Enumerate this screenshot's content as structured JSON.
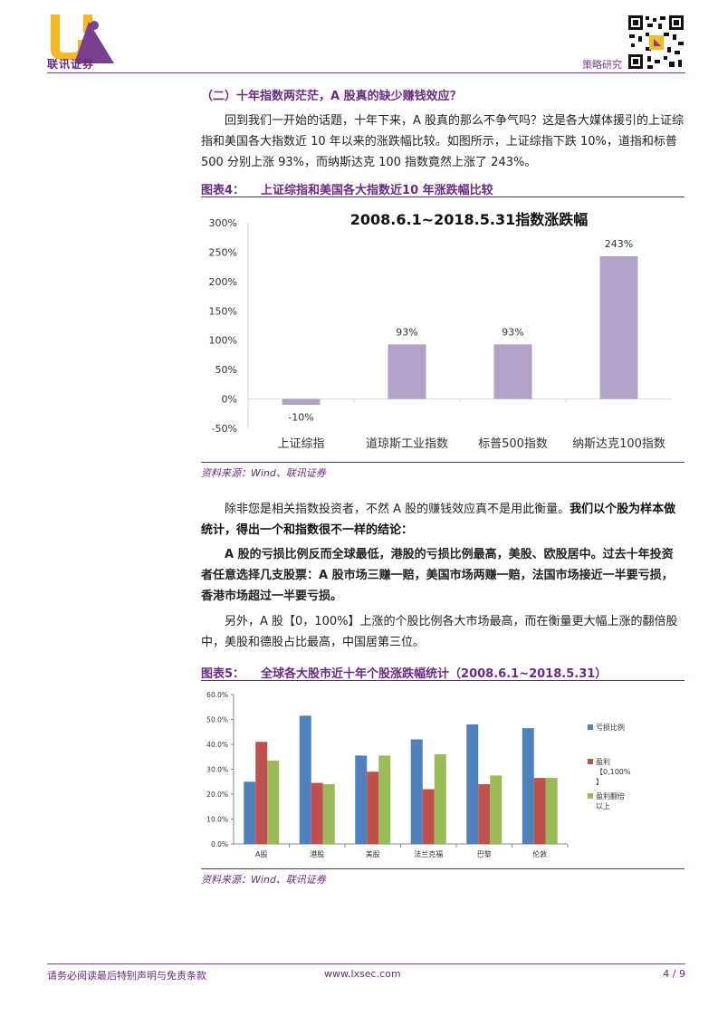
{
  "header": {
    "logo_text": "联讯证券",
    "section": "策略研究"
  },
  "body": {
    "section_title": "（二）十年指数两茫茫，A 股真的缺少赚钱效应？",
    "p1": "回到我们一开始的话题，十年下来，A 股真的那么不争气吗？这是各大媒体援引的上证综指和美国各大指数近 10 年以来的涨跌幅比较。如图所示，上证综指下跌 10%，道指和标普 500 分别上涨 93%，而纳斯达克 100 指数竟然上涨了 243%。",
    "fig4_label": "图表4：",
    "fig4_title": "上证综指和美国各大指数近10 年涨跌幅比较",
    "source1": "资料来源：Wind、联讯证券",
    "p2_normal": "除非您是相关指数投资者，不然 A 股的赚钱效应真不是用此衡量。",
    "p2_bold": "我们以个股为样本做统计，得出一个和指数很不一样的结论：",
    "p3": "A 股的亏损比例反而全球最低，港股的亏损比例最高，美股、欧股居中。过去十年投资者任意选择几支股票：A 股市场三赚一赔，美国市场两赚一赔，法国市场接近一半要亏损，香港市场超过一半要亏损。",
    "p4": "另外，A 股【0，100%】上涨的个股比例各大市场最高，而在衡量更大幅上涨的翻倍股中，美股和德股占比最高，中国居第三位。",
    "fig5_label": "图表5：",
    "fig5_title": "全球各大股市近十年个股涨跌幅统计（2008.6.1~2018.5.31）",
    "source2": "资料来源：Wind、联讯证券"
  },
  "footer": {
    "disclaimer": "请务必阅读最后特别声明与免责条款",
    "url": "www.lxsec.com",
    "page": "4 / 9"
  },
  "chart_data": [
    {
      "type": "bar",
      "title": "2008.6.1~2018.5.31指数涨跌幅",
      "categories": [
        "上证综指",
        "道琼斯工业指数",
        "标普500指数",
        "纳斯达克100指数"
      ],
      "values": [
        -10,
        93,
        93,
        243
      ],
      "data_labels": [
        "-10%",
        "93%",
        "93%",
        "243%"
      ],
      "ylim": [
        -50,
        300
      ],
      "yticks": [
        "300%",
        "250%",
        "200%",
        "150%",
        "100%",
        "50%",
        "0%",
        "-50%"
      ],
      "color": "#b3a2c7",
      "grid": false
    },
    {
      "type": "bar",
      "categories": [
        "A股",
        "港股",
        "美股",
        "法兰克福",
        "巴黎",
        "伦敦"
      ],
      "series": [
        {
          "name": "亏损比例",
          "values": [
            25,
            51.5,
            35.5,
            42,
            48,
            46.5
          ],
          "color": "#4f81bd"
        },
        {
          "name": "盈利【0,100%】",
          "values": [
            41,
            24.5,
            29,
            22,
            24,
            26.5
          ],
          "color": "#c0504d"
        },
        {
          "name": "盈利翻倍以上",
          "values": [
            33.5,
            24,
            35.5,
            36,
            27.5,
            26.5
          ],
          "color": "#9bbb59"
        }
      ],
      "legend_lines": [
        [
          "亏损比例"
        ],
        [
          "盈利",
          "【0,100%",
          "】"
        ],
        [
          "盈利翻倍",
          "以上"
        ]
      ],
      "ylim": [
        0,
        60
      ],
      "yticks": [
        "60.0%",
        "50.0%",
        "40.0%",
        "30.0%",
        "20.0%",
        "10.0%",
        "0.0%"
      ],
      "legend": "right",
      "grid": false
    }
  ]
}
